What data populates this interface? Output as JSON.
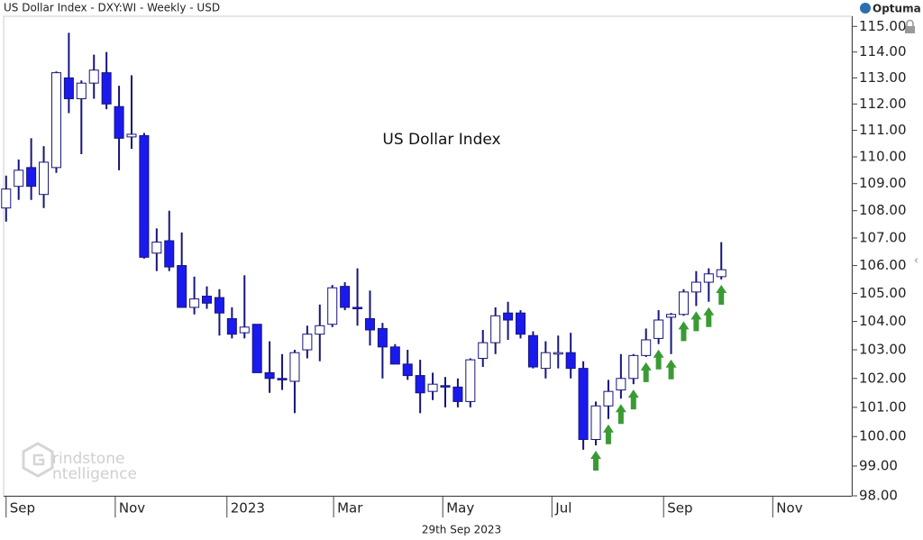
{
  "chart_data": {
    "type": "candlestick",
    "title": "US Dollar Index - DXY:WI - Weekly - USD",
    "annotation": "US Dollar Index",
    "brand": "Optuma",
    "watermark": [
      "rindstone",
      "ntelligence"
    ],
    "footer": "29th Sep 2023",
    "log_scale": true,
    "up_color": "#ffffff",
    "down_color": "#1a1aee",
    "outline_color": "#16167a",
    "ylim": [
      98.0,
      115.4
    ],
    "yticks": [
      {
        "value": 98,
        "label": "98.00"
      },
      {
        "value": 99,
        "label": "99.00"
      },
      {
        "value": 100,
        "label": "100.00"
      },
      {
        "value": 101,
        "label": "101.00"
      },
      {
        "value": 102,
        "label": "102.00"
      },
      {
        "value": 103,
        "label": "103.00"
      },
      {
        "value": 104,
        "label": "104.00"
      },
      {
        "value": 105,
        "label": "105.00"
      },
      {
        "value": 106,
        "label": "106.00"
      },
      {
        "value": 107,
        "label": "107.00"
      },
      {
        "value": 108,
        "label": "108.00"
      },
      {
        "value": 109,
        "label": "109.00"
      },
      {
        "value": 110,
        "label": "110.00"
      },
      {
        "value": 111,
        "label": "111.00"
      },
      {
        "value": 112,
        "label": "112.00"
      },
      {
        "value": 113,
        "label": "113.00"
      },
      {
        "value": 114,
        "label": "114.00"
      },
      {
        "value": 115,
        "label": "115.00"
      }
    ],
    "xlim": [
      -0.2,
      67.4
    ],
    "xticks": [
      {
        "value": 0,
        "label": "Sep"
      },
      {
        "value": 8.7,
        "label": "Nov"
      },
      {
        "value": 17.6,
        "label": "2023"
      },
      {
        "value": 26.1,
        "label": "Mar"
      },
      {
        "value": 34.8,
        "label": "May"
      },
      {
        "value": 43.5,
        "label": "Jul"
      },
      {
        "value": 52.4,
        "label": "Sep"
      },
      {
        "value": 61.1,
        "label": "Nov"
      }
    ],
    "open": [
      108.1,
      108.9,
      109.6,
      108.6,
      109.6,
      113.0,
      112.2,
      112.8,
      113.2,
      111.9,
      110.75,
      110.8,
      106.45,
      106.9,
      106.0,
      104.5,
      104.9,
      104.85,
      104.1,
      103.6,
      103.9,
      102.2,
      102.0,
      101.9,
      103.0,
      103.55,
      103.9,
      105.25,
      104.5,
      104.1,
      103.75,
      103.1,
      102.5,
      102.1,
      101.55,
      101.75,
      101.7,
      101.2,
      102.7,
      103.25,
      104.3,
      104.3,
      103.5,
      102.35,
      102.85,
      102.9,
      102.35,
      99.9,
      101.05,
      101.6,
      102.0,
      102.8,
      103.4,
      104.15,
      104.25,
      105.05,
      105.4,
      105.6
    ],
    "high": [
      109.3,
      109.9,
      110.7,
      110.4,
      113.25,
      114.75,
      112.9,
      113.9,
      114.0,
      112.7,
      113.1,
      110.9,
      107.35,
      108.0,
      107.2,
      105.6,
      105.25,
      105.15,
      104.5,
      105.65,
      103.9,
      103.3,
      102.85,
      103.0,
      103.85,
      104.6,
      105.3,
      105.4,
      105.9,
      105.1,
      103.95,
      103.2,
      103.0,
      102.65,
      102.2,
      102.05,
      102.0,
      102.7,
      103.7,
      104.5,
      104.7,
      104.4,
      103.65,
      103.3,
      103.5,
      103.6,
      102.6,
      101.2,
      101.95,
      102.85,
      102.85,
      103.75,
      104.4,
      104.3,
      105.15,
      105.8,
      105.9,
      106.85
    ],
    "low": [
      107.6,
      108.4,
      108.4,
      108.1,
      109.4,
      111.65,
      110.1,
      112.2,
      111.8,
      109.5,
      110.3,
      106.25,
      105.8,
      105.8,
      104.5,
      104.25,
      104.45,
      103.5,
      103.4,
      103.4,
      102.2,
      101.5,
      101.6,
      100.8,
      102.7,
      102.6,
      103.8,
      104.4,
      103.85,
      103.15,
      102.0,
      102.5,
      101.95,
      100.8,
      101.25,
      101.0,
      101.0,
      101.0,
      102.4,
      102.85,
      103.35,
      103.4,
      102.35,
      102.0,
      102.35,
      102.0,
      99.55,
      99.7,
      100.6,
      101.3,
      101.8,
      102.75,
      103.2,
      102.85,
      104.2,
      104.55,
      104.7,
      105.5
    ],
    "close": [
      108.8,
      109.5,
      108.9,
      109.8,
      113.2,
      112.2,
      112.8,
      113.3,
      112.0,
      110.7,
      110.85,
      106.3,
      106.85,
      105.95,
      104.5,
      104.8,
      104.65,
      104.3,
      103.55,
      103.8,
      102.2,
      102.0,
      101.95,
      102.9,
      103.55,
      103.85,
      105.2,
      104.5,
      104.45,
      103.7,
      103.1,
      102.5,
      102.1,
      101.5,
      101.8,
      101.7,
      101.2,
      102.65,
      103.25,
      104.2,
      104.05,
      103.55,
      102.4,
      102.9,
      102.9,
      102.35,
      99.9,
      101.05,
      101.55,
      102.0,
      102.8,
      103.35,
      104.05,
      104.25,
      105.05,
      105.4,
      105.7,
      105.85
    ],
    "arrows": {
      "color": "#3a9b35",
      "at": [
        47,
        48,
        49,
        50,
        51,
        52,
        53,
        54,
        55,
        56,
        57
      ]
    }
  }
}
